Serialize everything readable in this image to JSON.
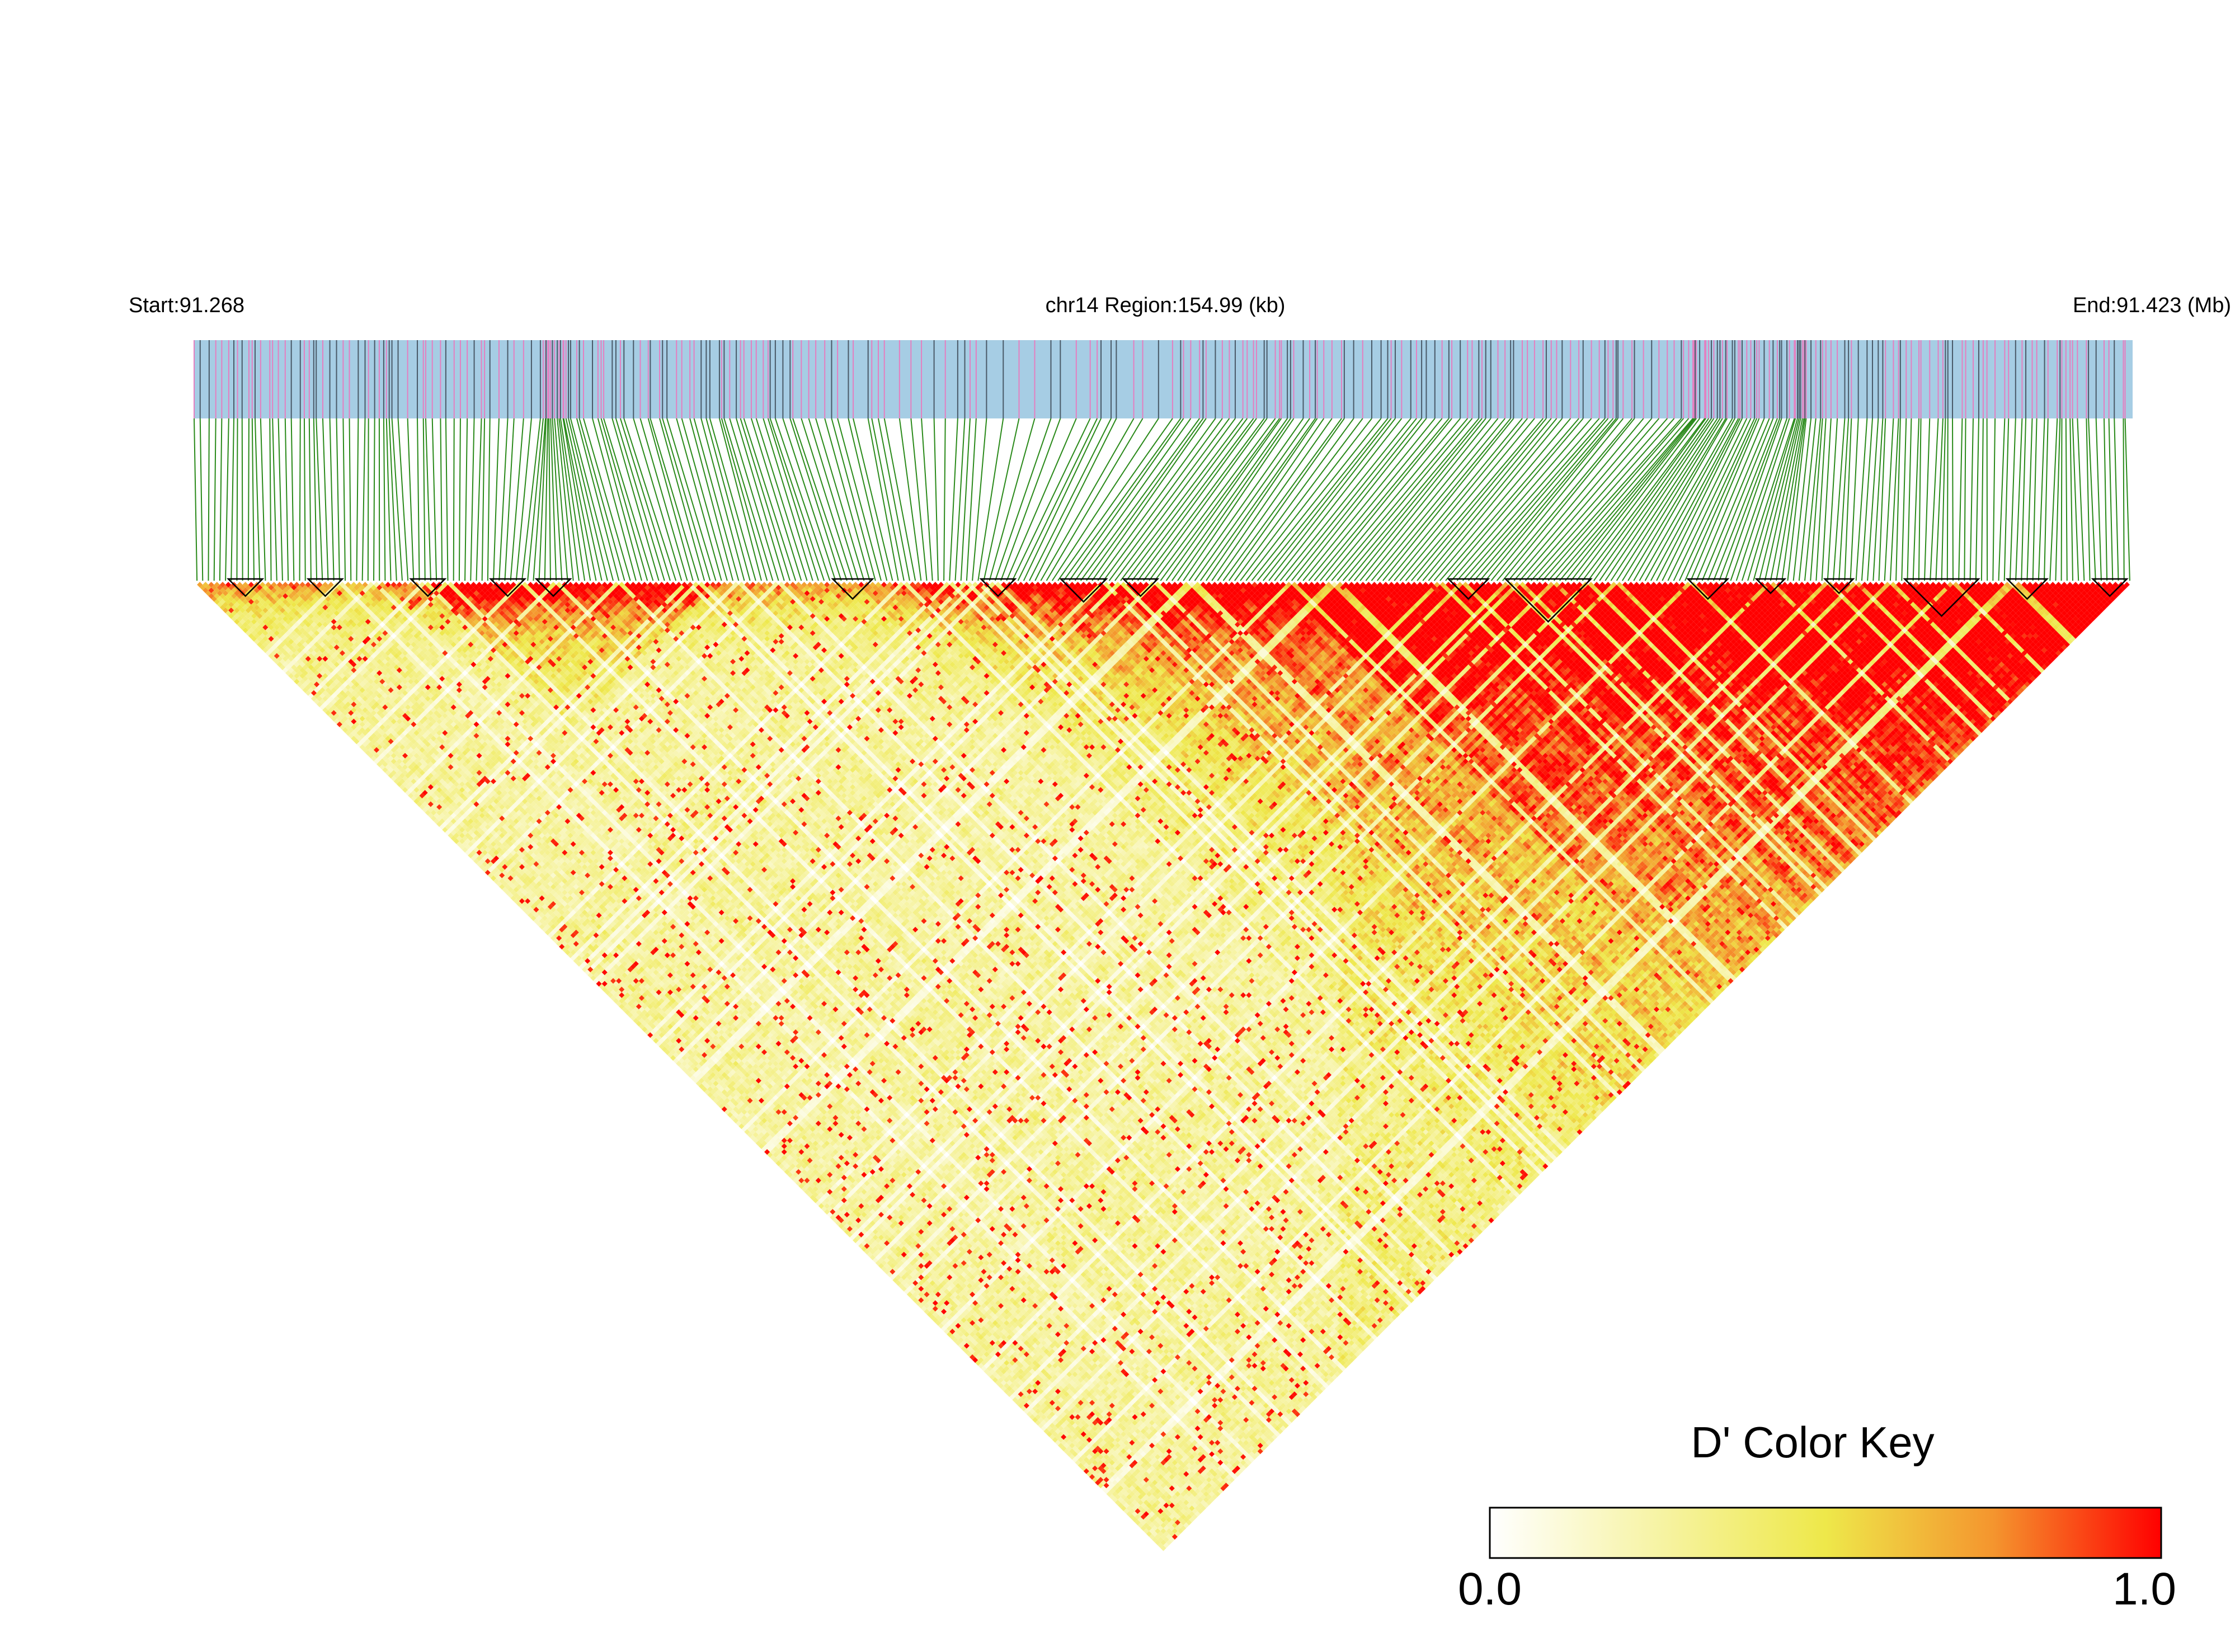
{
  "chart_data": {
    "type": "heatmap",
    "subtype": "linkage-disequilibrium-triangle",
    "title": "chr14 Region:154.99 (kb)",
    "start_label": "Start:91.268",
    "end_label": "End:91.423 (Mb)",
    "chromosome": "chr14",
    "region_kb": 154.99,
    "start_mb": 91.268,
    "end_mb": 91.423,
    "n_snps": 340,
    "metric": "D'",
    "value_range": [
      0.0,
      1.0
    ],
    "color_key": {
      "title": "D' Color Key",
      "min_label": "0.0",
      "max_label": "1.0",
      "stops": [
        "#ffffff",
        "#eee84a",
        "#f4952e",
        "#ff0000"
      ]
    },
    "colors": {
      "track_fill": "#a6cde4",
      "track_tick_pink": "#e47fc0",
      "track_tick_dark": "#4a5a68",
      "connector_lines": "#2a8a1a",
      "block_outline": "#000000"
    },
    "haplotype_blocks_snp_ranges": [
      [
        6,
        11
      ],
      [
        20,
        25
      ],
      [
        38,
        43
      ],
      [
        52,
        57
      ],
      [
        60,
        65
      ],
      [
        112,
        118
      ],
      [
        138,
        143
      ],
      [
        152,
        159
      ],
      [
        163,
        168
      ],
      [
        220,
        226
      ],
      [
        230,
        244
      ],
      [
        262,
        268
      ],
      [
        274,
        278
      ],
      [
        286,
        290
      ],
      [
        300,
        312
      ],
      [
        318,
        324
      ],
      [
        333,
        338
      ]
    ],
    "ld_pattern_summary": "Mostly low D' (0.0-0.4) in the left portion and lower rows; a band of high D' (~0.8-1.0) beginning at SNP ~115 and dominating the right half (SNP 180-340)."
  }
}
